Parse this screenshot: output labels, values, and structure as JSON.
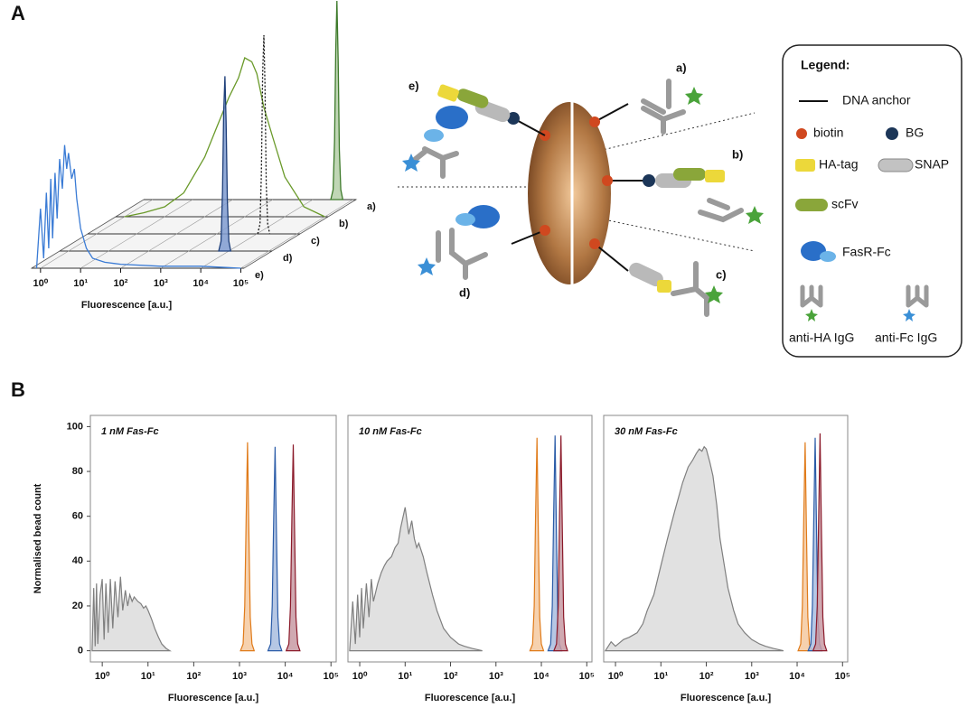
{
  "panel_labels": [
    "A",
    "B"
  ],
  "diagram": {
    "labels": [
      "a)",
      "b)",
      "c)",
      "d)",
      "e)"
    ]
  },
  "legend": {
    "title": "Legend:",
    "items": [
      "DNA anchor",
      "biotin",
      "BG",
      "HA-tag",
      "SNAP",
      "scFv",
      "FasR-Fc",
      "anti-HA IgG",
      "anti-Fc IgG"
    ]
  },
  "chart_data": [
    {
      "type": "ridgeline",
      "xlabel": "Fluorescence [a.u.]",
      "xscale": "log",
      "xlim": [
        0.6,
        120000
      ],
      "ylim": [
        0,
        100
      ],
      "xticks": [
        {
          "value": 1,
          "label": "10⁰"
        },
        {
          "value": 10,
          "label": "10¹"
        },
        {
          "value": 100,
          "label": "10²"
        },
        {
          "value": 1000,
          "label": "10³"
        },
        {
          "value": 10000,
          "label": "10⁴"
        },
        {
          "value": 100000,
          "label": "10⁵"
        }
      ],
      "series": [
        {
          "name": "a)",
          "color": "#3d7a2a",
          "fill": "#b5cfa8",
          "x": [
            28000,
            32000,
            34800,
            37200,
            40000,
            42800,
            46000,
            50000,
            56000
          ],
          "values": [
            0,
            5,
            30,
            75,
            100,
            70,
            25,
            5,
            0
          ]
        },
        {
          "name": "b)",
          "color": "#6a9a2a",
          "x": [
            1,
            3,
            10,
            30,
            100,
            200,
            400,
            700,
            1000,
            1500,
            2000,
            3000,
            5000,
            10000,
            30000,
            100000
          ],
          "values": [
            0,
            2,
            5,
            12,
            30,
            45,
            60,
            70,
            80,
            78,
            72,
            55,
            40,
            20,
            5,
            0
          ]
        },
        {
          "name": "c)",
          "color": "#111111",
          "dash": true,
          "x": [
            10500,
            12000,
            13000,
            14000,
            15000,
            16000,
            17200,
            18700,
            21000
          ],
          "values": [
            0,
            5,
            30,
            80,
            100,
            75,
            25,
            5,
            0
          ]
        },
        {
          "name": "d)",
          "color": "#1e3f7a",
          "fill": "#7f9bd0",
          "x": [
            5600,
            6400,
            6960,
            7440,
            8000,
            8560,
            9200,
            10000,
            11200
          ],
          "values": [
            0,
            5,
            30,
            70,
            88,
            65,
            25,
            5,
            0
          ]
        },
        {
          "name": "e)",
          "color": "#3a7bd5",
          "x": [
            0.8,
            1,
            1.2,
            1.4,
            1.6,
            1.8,
            2,
            2.3,
            2.6,
            3,
            3.5,
            4,
            4.5,
            5,
            6,
            7,
            8,
            10,
            14,
            20,
            40,
            100,
            1000,
            10000,
            100000
          ],
          "values": [
            0,
            30,
            5,
            38,
            10,
            45,
            15,
            48,
            25,
            55,
            40,
            62,
            50,
            58,
            45,
            50,
            35,
            20,
            10,
            5,
            3,
            2,
            1,
            1,
            0
          ]
        }
      ]
    },
    {
      "type": "histogram",
      "title": "1 nM Fas-Fc",
      "xlabel": "Fluorescence [a.u.]",
      "ylabel": "Normalised bead count",
      "xscale": "log",
      "xlim": [
        0.55,
        130000
      ],
      "ylim": [
        -5,
        105
      ],
      "yticks": [
        0,
        20,
        40,
        60,
        80,
        100
      ],
      "xticks": [
        {
          "value": 1,
          "label": "10⁰"
        },
        {
          "value": 10,
          "label": "10¹"
        },
        {
          "value": 100,
          "label": "10²"
        },
        {
          "value": 1000,
          "label": "10³"
        },
        {
          "value": 10000,
          "label": "10⁴"
        },
        {
          "value": 100000,
          "label": "10⁵"
        }
      ],
      "series": [
        {
          "color": "#7f7f7f",
          "fill": "#dcdcdc",
          "x": [
            0.6,
            0.65,
            0.7,
            0.75,
            0.8,
            0.9,
            1.0,
            1.1,
            1.2,
            1.35,
            1.5,
            1.7,
            1.9,
            2.2,
            2.5,
            2.8,
            3.2,
            3.6,
            4,
            4.5,
            5,
            6,
            7,
            8,
            9,
            10,
            12,
            14,
            17,
            20,
            25,
            30
          ],
          "values": [
            0,
            28,
            2,
            30,
            3,
            25,
            32,
            5,
            30,
            8,
            32,
            10,
            31,
            15,
            33,
            18,
            27,
            20,
            25,
            22,
            24,
            22,
            21,
            19,
            20,
            18,
            14,
            10,
            6,
            3,
            1,
            0
          ]
        },
        {
          "color": "#e07b1a",
          "fill": "#f5c9a0",
          "x": [
            1050,
            1200,
            1300,
            1400,
            1500,
            1600,
            1720,
            1870,
            2100
          ],
          "values": [
            0,
            3,
            20,
            60,
            93,
            55,
            15,
            3,
            0
          ]
        },
        {
          "color": "#2b5ca8",
          "fill": "#a9bddf",
          "x": [
            4200,
            4800,
            5200,
            5600,
            6000,
            6400,
            6900,
            7500,
            8400
          ],
          "values": [
            0,
            3,
            20,
            60,
            91,
            55,
            15,
            3,
            0
          ]
        },
        {
          "color": "#8b1a2a",
          "fill": "#c89aa3",
          "x": [
            10500,
            12000,
            13000,
            14000,
            15000,
            16000,
            17200,
            18700,
            21000
          ],
          "values": [
            0,
            3,
            20,
            60,
            92,
            55,
            15,
            3,
            0
          ]
        }
      ]
    },
    {
      "type": "histogram",
      "title": "10 nM Fas-Fc",
      "xlabel": "Fluorescence [a.u.]",
      "xscale": "log",
      "xlim": [
        0.55,
        130000
      ],
      "ylim": [
        -5,
        105
      ],
      "xticks": [
        {
          "value": 1,
          "label": "10⁰"
        },
        {
          "value": 10,
          "label": "10¹"
        },
        {
          "value": 100,
          "label": "10²"
        },
        {
          "value": 1000,
          "label": "10³"
        },
        {
          "value": 10000,
          "label": "10⁴"
        },
        {
          "value": 100000,
          "label": "10⁵"
        }
      ],
      "series": [
        {
          "color": "#7f7f7f",
          "fill": "#dcdcdc",
          "x": [
            0.6,
            0.7,
            0.8,
            0.9,
            1,
            1.1,
            1.2,
            1.4,
            1.6,
            1.8,
            2,
            2.5,
            3,
            3.5,
            4,
            5,
            6,
            7,
            8,
            10,
            12,
            14,
            16,
            18,
            20,
            25,
            30,
            40,
            50,
            70,
            100,
            150,
            200,
            300,
            500
          ],
          "values": [
            0,
            22,
            3,
            25,
            6,
            28,
            10,
            30,
            15,
            32,
            22,
            30,
            35,
            38,
            40,
            42,
            46,
            48,
            55,
            64,
            52,
            58,
            50,
            46,
            48,
            42,
            35,
            25,
            18,
            10,
            6,
            3,
            2,
            1,
            0
          ]
        },
        {
          "color": "#e07b1a",
          "fill": "#f5c9a0",
          "x": [
            5600,
            6400,
            6960,
            7440,
            8000,
            8560,
            9200,
            10000,
            11200
          ],
          "values": [
            0,
            3,
            20,
            60,
            95,
            55,
            15,
            3,
            0
          ]
        },
        {
          "color": "#2b5ca8",
          "fill": "#a9bddf",
          "x": [
            14000,
            16000,
            17400,
            18600,
            20000,
            21400,
            23000,
            25000,
            28000
          ],
          "values": [
            0,
            3,
            20,
            60,
            96,
            55,
            15,
            3,
            0
          ]
        },
        {
          "color": "#8b1a2a",
          "fill": "#c89aa3",
          "x": [
            18900,
            21600,
            23500,
            25100,
            27000,
            28900,
            31000,
            33800,
            37800
          ],
          "values": [
            0,
            3,
            20,
            60,
            96,
            55,
            15,
            3,
            0
          ]
        }
      ]
    },
    {
      "type": "histogram",
      "title": "30 nM Fas-Fc",
      "xlabel": "Fluorescence [a.u.]",
      "xscale": "log",
      "xlim": [
        0.55,
        130000
      ],
      "ylim": [
        -5,
        105
      ],
      "xticks": [
        {
          "value": 1,
          "label": "10⁰"
        },
        {
          "value": 10,
          "label": "10¹"
        },
        {
          "value": 100,
          "label": "10²"
        },
        {
          "value": 1000,
          "label": "10³"
        },
        {
          "value": 10000,
          "label": "10⁴"
        },
        {
          "value": 100000,
          "label": "10⁵"
        }
      ],
      "series": [
        {
          "color": "#7f7f7f",
          "fill": "#dcdcdc",
          "x": [
            0.6,
            0.8,
            1,
            1.5,
            2,
            3,
            4,
            5,
            7,
            10,
            14,
            20,
            30,
            40,
            50,
            60,
            70,
            80,
            90,
            100,
            120,
            140,
            170,
            200,
            250,
            300,
            400,
            500,
            700,
            1000,
            1500,
            2000,
            3000,
            5000
          ],
          "values": [
            0,
            4,
            2,
            5,
            6,
            8,
            12,
            18,
            25,
            38,
            50,
            62,
            75,
            82,
            85,
            88,
            90,
            89,
            91,
            90,
            84,
            78,
            65,
            50,
            38,
            28,
            18,
            12,
            8,
            5,
            3,
            2,
            1,
            0
          ]
        },
        {
          "color": "#e07b1a",
          "fill": "#f5c9a0",
          "x": [
            10500,
            12000,
            13000,
            14000,
            15000,
            16000,
            17200,
            18700,
            21000
          ],
          "values": [
            0,
            3,
            20,
            60,
            93,
            55,
            15,
            3,
            0
          ]
        },
        {
          "color": "#2b5ca8",
          "fill": "#a9bddf",
          "x": [
            17500,
            20000,
            21700,
            23300,
            25000,
            26800,
            28700,
            31200,
            35000
          ],
          "values": [
            0,
            3,
            20,
            60,
            95,
            55,
            15,
            3,
            0
          ]
        },
        {
          "color": "#8b1a2a",
          "fill": "#c89aa3",
          "x": [
            22400,
            25600,
            27800,
            29800,
            32000,
            34200,
            36800,
            40000,
            44800
          ],
          "values": [
            0,
            3,
            20,
            60,
            97,
            55,
            15,
            3,
            0
          ]
        }
      ]
    }
  ]
}
